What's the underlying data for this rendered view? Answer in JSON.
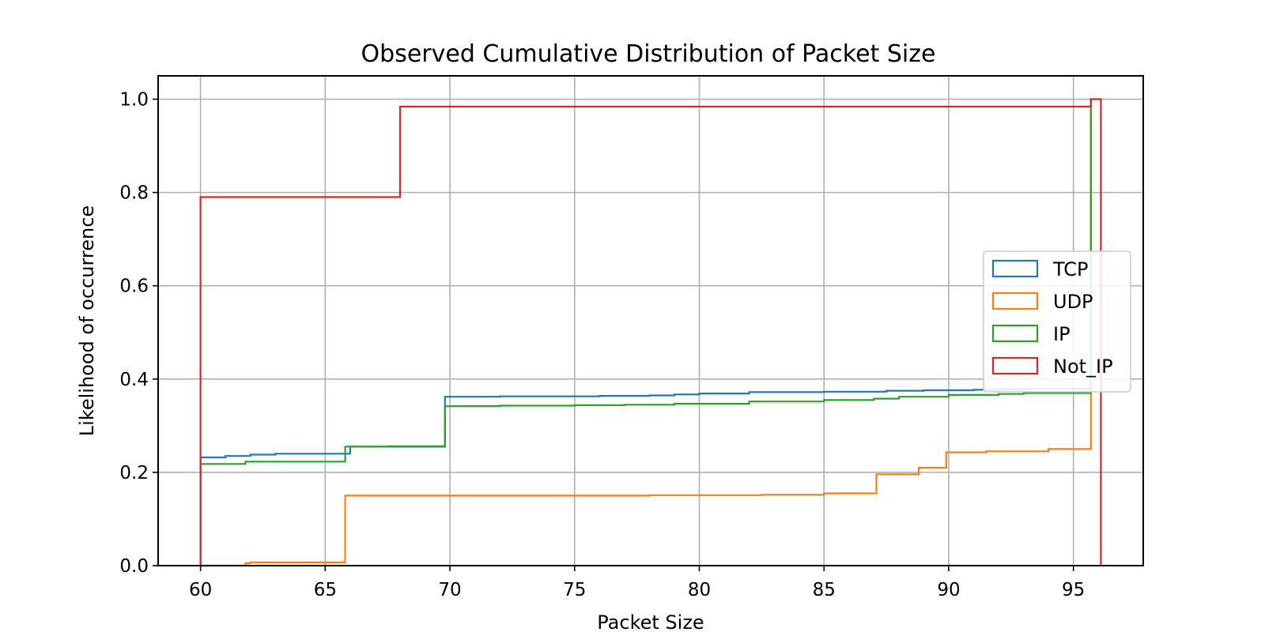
{
  "chart_data": {
    "type": "line",
    "title": "Observed Cumulative Distribution of Packet Size",
    "xlabel": "Packet Size",
    "ylabel": "Likelihood of occurrence",
    "xlim": [
      58.3,
      97.8
    ],
    "ylim": [
      0,
      1.05
    ],
    "x_ticks": [
      "60",
      "65",
      "70",
      "75",
      "80",
      "85",
      "90",
      "95"
    ],
    "y_ticks": [
      "0.0",
      "0.2",
      "0.4",
      "0.6",
      "0.8",
      "1.0"
    ],
    "grid": true,
    "legend_position": "center-right",
    "step": true,
    "series": [
      {
        "name": "TCP",
        "color": "#1f77b4",
        "x": [
          60,
          60,
          61,
          62,
          63,
          66,
          69.8,
          70,
          72,
          76,
          78,
          79,
          80,
          82,
          85,
          87.5,
          89,
          91,
          92,
          93,
          95.7
        ],
        "y": [
          0,
          0.232,
          0.235,
          0.238,
          0.24,
          0.255,
          0.362,
          0.362,
          0.363,
          0.364,
          0.365,
          0.367,
          0.369,
          0.372,
          0.373,
          0.375,
          0.376,
          0.377,
          0.378,
          0.379,
          0.38
        ]
      },
      {
        "name": "UDP",
        "color": "#ff7f0e",
        "x": [
          60,
          61.8,
          62,
          65.8,
          78,
          82.5,
          85,
          87.1,
          88.8,
          89.9,
          91.5,
          94,
          95.7
        ],
        "y": [
          0,
          0.005,
          0.007,
          0.15,
          0.151,
          0.152,
          0.155,
          0.196,
          0.21,
          0.243,
          0.245,
          0.25,
          1.0
        ]
      },
      {
        "name": "IP",
        "color": "#2ca02c",
        "x": [
          60,
          60,
          61.8,
          65.8,
          67.5,
          69.8,
          72,
          75,
          77,
          79,
          82,
          85,
          87,
          88,
          90,
          92,
          93,
          95.7
        ],
        "y": [
          0,
          0.218,
          0.223,
          0.255,
          0.256,
          0.342,
          0.343,
          0.344,
          0.345,
          0.347,
          0.352,
          0.355,
          0.358,
          0.362,
          0.366,
          0.368,
          0.37,
          1.0
        ]
      },
      {
        "name": "Not_IP",
        "color": "#d62728",
        "x": [
          60,
          60,
          68,
          95.7,
          96.1
        ],
        "y": [
          0,
          0.79,
          0.984,
          1.0,
          0
        ]
      }
    ]
  }
}
